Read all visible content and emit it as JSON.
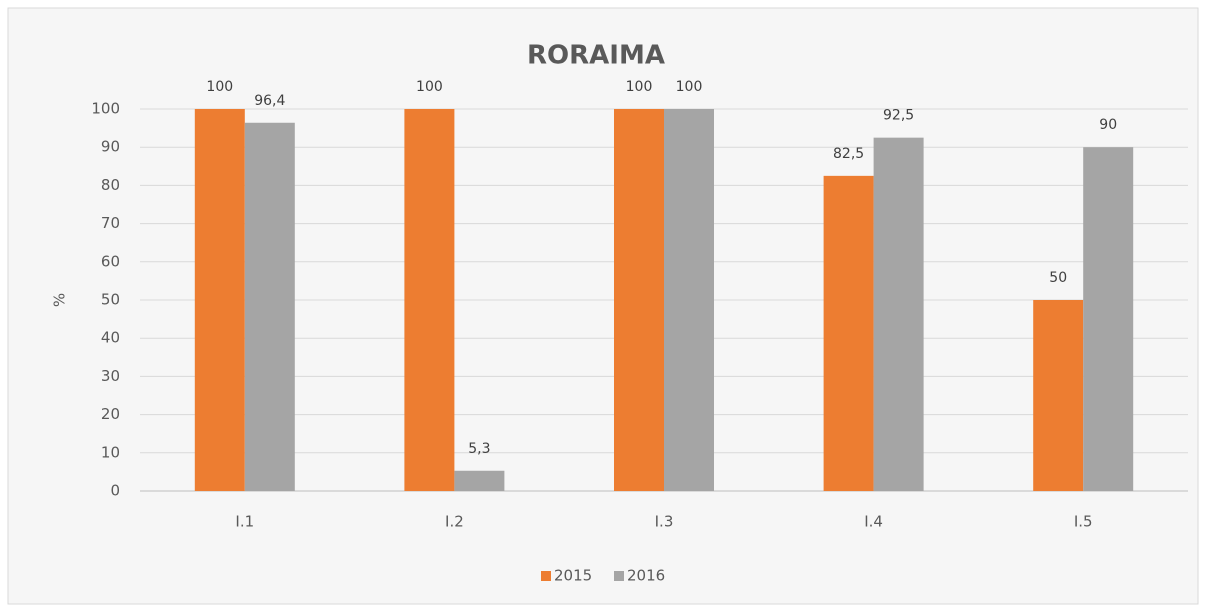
{
  "chart_data": {
    "type": "bar",
    "title": "RORAIMA",
    "y_label": "%",
    "categories": [
      "I.1",
      "I.2",
      "I.3",
      "I.4",
      "I.5"
    ],
    "series": [
      {
        "name": "2015",
        "color": "#ed7d31",
        "values": [
          100,
          100,
          100,
          82.5,
          50
        ],
        "value_labels": [
          "100",
          "100",
          "100",
          "82,5",
          "50"
        ]
      },
      {
        "name": "2016",
        "color": "#a5a5a5",
        "values": [
          96.4,
          5.3,
          100,
          92.5,
          90
        ],
        "value_labels": [
          "96,4",
          "5,3",
          "100",
          "92,5",
          "90"
        ]
      }
    ],
    "ylim": [
      0,
      100
    ],
    "yticks": [
      0,
      10,
      20,
      30,
      40,
      50,
      60,
      70,
      80,
      90,
      100
    ],
    "grid": true,
    "legend": "bottom"
  }
}
